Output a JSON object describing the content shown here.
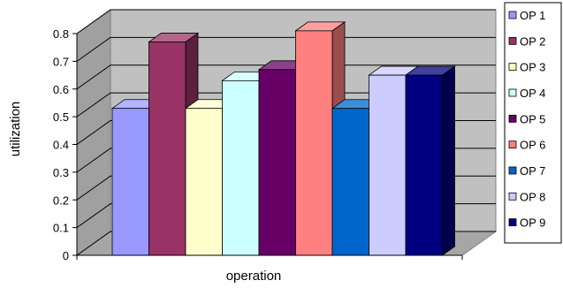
{
  "chart_data": {
    "type": "bar",
    "style": "3d-clustered-column",
    "categories": [
      ""
    ],
    "series": [
      {
        "name": "OP 1",
        "values": [
          0.53
        ],
        "color": "#9999ff"
      },
      {
        "name": "OP 2",
        "values": [
          0.77
        ],
        "color": "#993366"
      },
      {
        "name": "OP 3",
        "values": [
          0.53
        ],
        "color": "#ffffcc"
      },
      {
        "name": "OP 4",
        "values": [
          0.63
        ],
        "color": "#ccffff"
      },
      {
        "name": "OP 5",
        "values": [
          0.67
        ],
        "color": "#660066"
      },
      {
        "name": "OP 6",
        "values": [
          0.81
        ],
        "color": "#ff8080"
      },
      {
        "name": "OP 7",
        "values": [
          0.53
        ],
        "color": "#0066cc"
      },
      {
        "name": "OP 8",
        "values": [
          0.65
        ],
        "color": "#ccccff"
      },
      {
        "name": "OP 9",
        "values": [
          0.65
        ],
        "color": "#000080"
      }
    ],
    "title": "",
    "xlabel": "operation",
    "ylabel": "utilization",
    "ylim": [
      0,
      0.8
    ],
    "yticks": [
      "0",
      "0.1",
      "0.2",
      "0.3",
      "0.4",
      "0.5",
      "0.6",
      "0.7",
      "0.8"
    ],
    "grid": true,
    "legend_position": "right",
    "wall_color": "#c0c0c0",
    "floor_color": "#a6a6a6"
  }
}
